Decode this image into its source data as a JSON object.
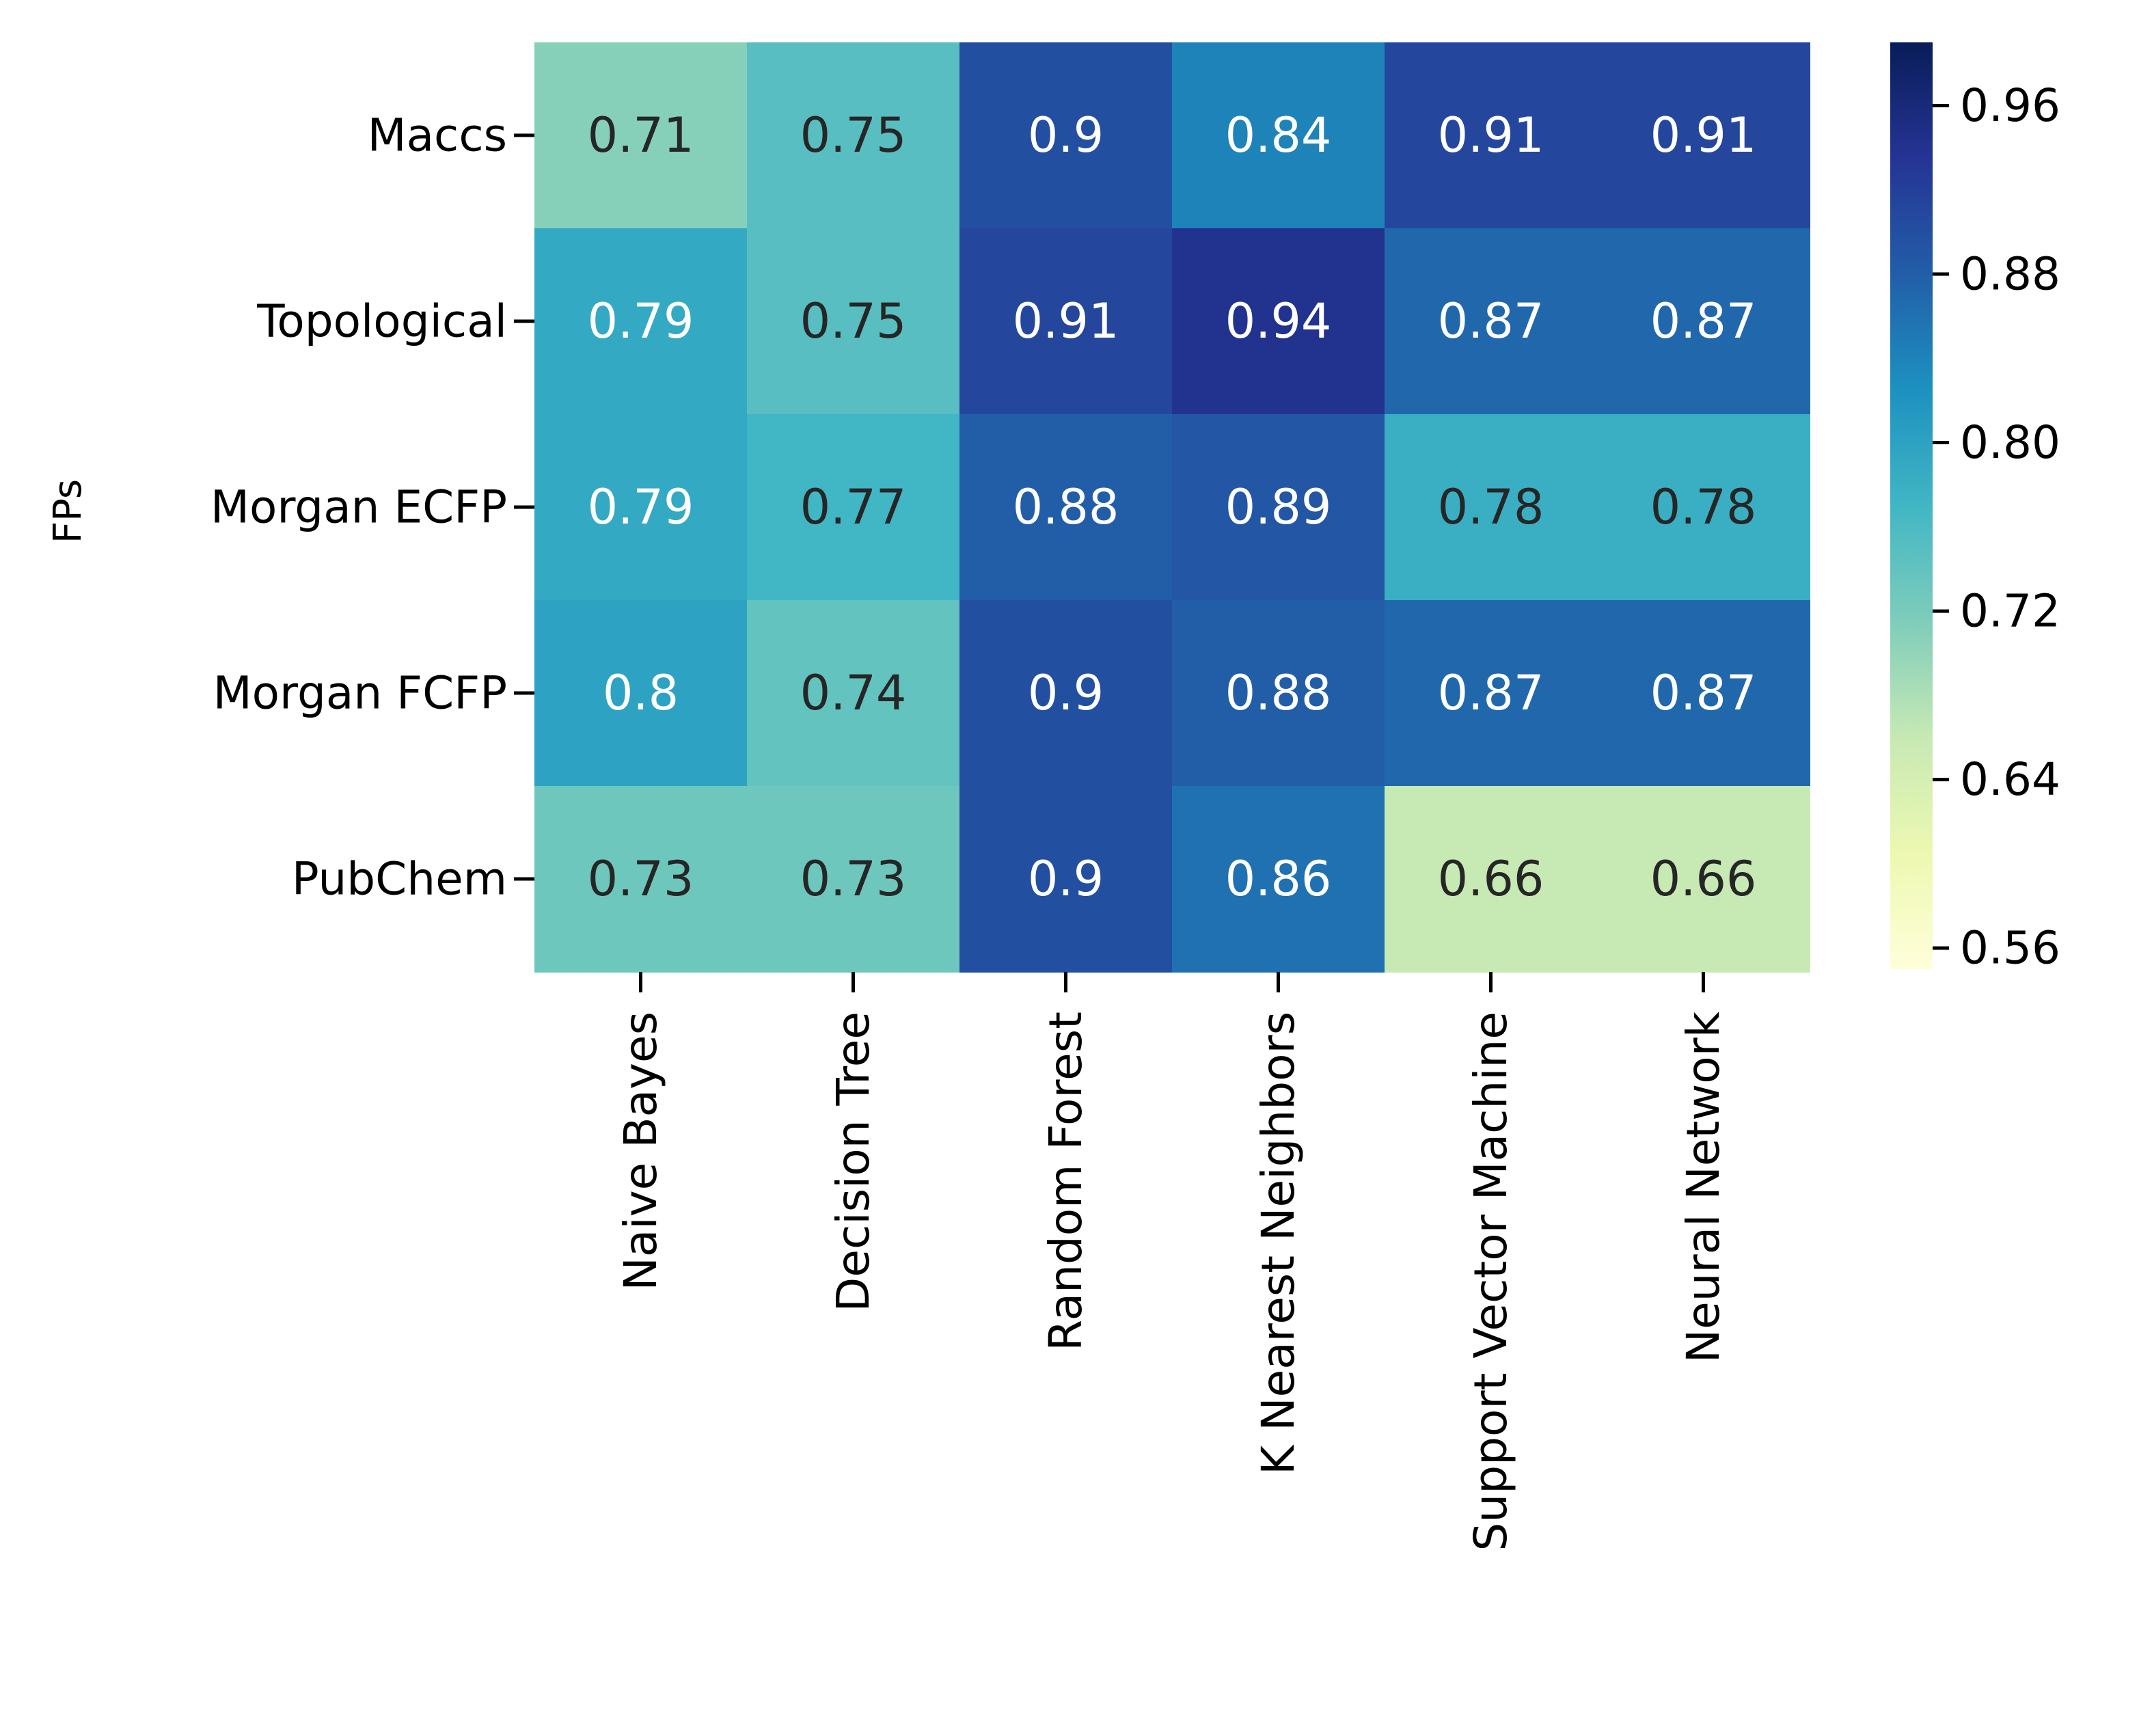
{
  "chart_data": {
    "type": "heatmap",
    "ylabel": "FPs",
    "xlabel": "",
    "rows": [
      "Maccs",
      "Topological",
      "Morgan ECFP",
      "Morgan FCFP",
      "PubChem"
    ],
    "columns": [
      "Naive Bayes",
      "Decision Tree",
      "Random Forest",
      "K Nearest Neighbors",
      "Support Vector Machine",
      "Neural Network"
    ],
    "cell_labels": [
      [
        "0.71",
        "0.75",
        "0.9",
        "0.84",
        "0.91",
        "0.91"
      ],
      [
        "0.79",
        "0.75",
        "0.91",
        "0.94",
        "0.87",
        "0.87"
      ],
      [
        "0.79",
        "0.77",
        "0.88",
        "0.89",
        "0.78",
        "0.78"
      ],
      [
        "0.8",
        "0.74",
        "0.9",
        "0.88",
        "0.87",
        "0.87"
      ],
      [
        "0.73",
        "0.73",
        "0.9",
        "0.86",
        "0.66",
        "0.66"
      ]
    ],
    "values": [
      [
        0.71,
        0.75,
        0.9,
        0.84,
        0.91,
        0.91
      ],
      [
        0.79,
        0.75,
        0.91,
        0.94,
        0.87,
        0.87
      ],
      [
        0.79,
        0.77,
        0.88,
        0.89,
        0.78,
        0.78
      ],
      [
        0.8,
        0.74,
        0.9,
        0.88,
        0.87,
        0.87
      ],
      [
        0.73,
        0.73,
        0.9,
        0.86,
        0.66,
        0.66
      ]
    ],
    "colormap": "YlGnBu",
    "colorbar": {
      "range": [
        0.55,
        0.99
      ],
      "ticks": [
        0.56,
        0.64,
        0.72,
        0.8,
        0.88,
        0.96
      ],
      "tick_labels": [
        "0.56",
        "0.64",
        "0.72",
        "0.80",
        "0.88",
        "0.96"
      ]
    }
  }
}
